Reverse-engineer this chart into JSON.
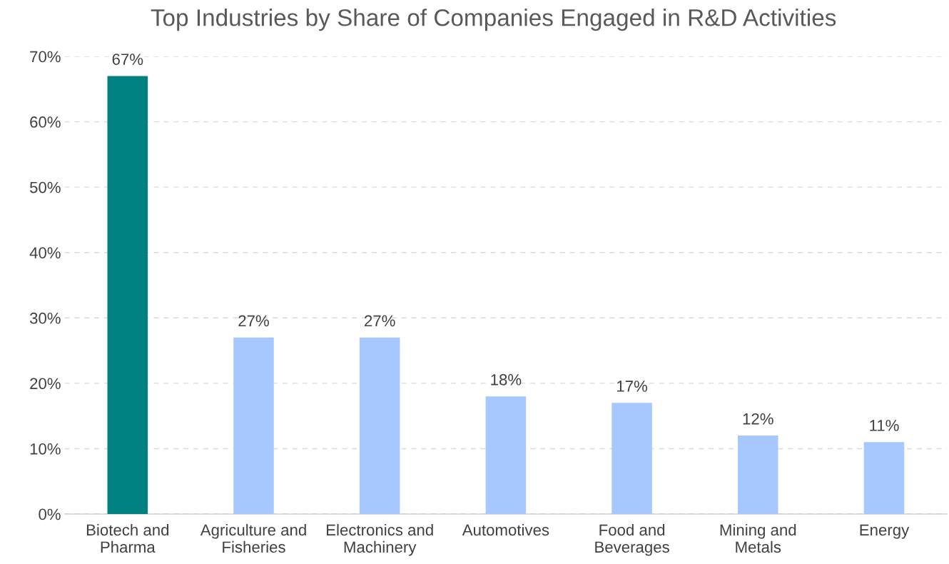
{
  "chart_data": {
    "type": "bar",
    "title": "Top Industries by Share of Companies Engaged in R&D Activities",
    "categories": [
      "Biotech and\nPharma",
      "Agriculture and\nFisheries",
      "Electronics and\nMachinery",
      "Automotives",
      "Food and\nBeverages",
      "Mining and\nMetals",
      "Energy"
    ],
    "values": [
      67,
      27,
      27,
      18,
      17,
      12,
      11
    ],
    "colors": [
      "#008080",
      "#a6c8ff",
      "#a6c8ff",
      "#a6c8ff",
      "#a6c8ff",
      "#a6c8ff",
      "#a6c8ff"
    ],
    "value_labels": [
      "67%",
      "27%",
      "27%",
      "18%",
      "17%",
      "12%",
      "11%"
    ],
    "ylim": [
      0,
      70
    ],
    "yticks": [
      {
        "value": 0,
        "label": "0%"
      },
      {
        "value": 10,
        "label": "10%"
      },
      {
        "value": 20,
        "label": "20%"
      },
      {
        "value": 30,
        "label": "30%"
      },
      {
        "value": 40,
        "label": "40%"
      },
      {
        "value": 50,
        "label": "50%"
      },
      {
        "value": 60,
        "label": "60%"
      },
      {
        "value": 70,
        "label": "70%"
      }
    ],
    "grid": "y",
    "legend": false
  }
}
